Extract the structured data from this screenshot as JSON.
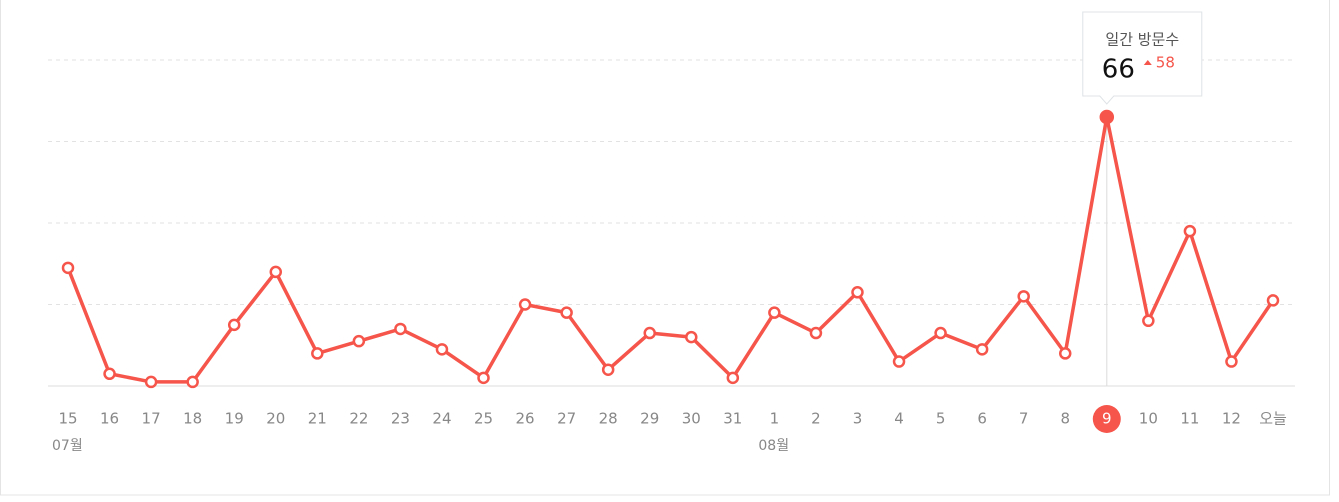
{
  "chart_data": {
    "type": "line",
    "categories": [
      "15",
      "16",
      "17",
      "18",
      "19",
      "20",
      "21",
      "22",
      "23",
      "24",
      "25",
      "26",
      "27",
      "28",
      "29",
      "30",
      "31",
      "1",
      "2",
      "3",
      "4",
      "5",
      "6",
      "7",
      "8",
      "9",
      "10",
      "11",
      "12",
      "오늘"
    ],
    "months": [
      "07월",
      null,
      null,
      null,
      null,
      null,
      null,
      null,
      null,
      null,
      null,
      null,
      null,
      null,
      null,
      null,
      null,
      "08월",
      null,
      null,
      null,
      null,
      null,
      null,
      null,
      null,
      null,
      null,
      null,
      null
    ],
    "series": [
      {
        "name": "일간 방문수",
        "color": "#f5554a",
        "values": [
          29,
          3,
          1,
          1,
          15,
          28,
          8,
          11,
          14,
          9,
          2,
          20,
          18,
          4,
          13,
          12,
          2,
          18,
          13,
          23,
          6,
          13,
          9,
          22,
          8,
          66,
          16,
          38,
          6,
          21
        ]
      }
    ],
    "ylim": [
      0,
      80
    ],
    "yticks": [
      0,
      20,
      40,
      60,
      80
    ],
    "grid": true,
    "tooltip": {
      "title": "일간 방문수",
      "value": 66,
      "change": 58
    }
  }
}
